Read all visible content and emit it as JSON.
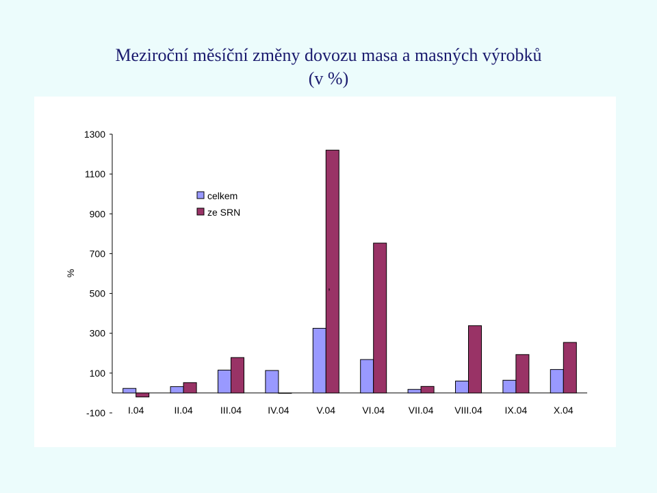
{
  "title": {
    "line1": "Meziroční měsíční změny dovozu masa a masných výrobků",
    "line2": "(v %)"
  },
  "chart_data": {
    "type": "bar",
    "ylabel": "%",
    "ylim": [
      -100,
      1300
    ],
    "yticks": [
      -100,
      100,
      300,
      500,
      700,
      900,
      1100,
      1300
    ],
    "categories": [
      "I.04",
      "II.04",
      "III.04",
      "IV.04",
      "V.04",
      "VI.04",
      "VII.04",
      "VIII.04",
      "IX.04",
      "X.04"
    ],
    "series": [
      {
        "name": "celkem",
        "color": "#9999ff",
        "values": [
          23,
          32,
          115,
          113,
          325,
          168,
          18,
          60,
          64,
          118
        ]
      },
      {
        "name": "ze SRN",
        "color": "#993366",
        "values": [
          -20,
          52,
          178,
          0,
          1220,
          753,
          33,
          338,
          193,
          254
        ]
      }
    ],
    "legend_position": "upper-center",
    "annotation": ","
  }
}
